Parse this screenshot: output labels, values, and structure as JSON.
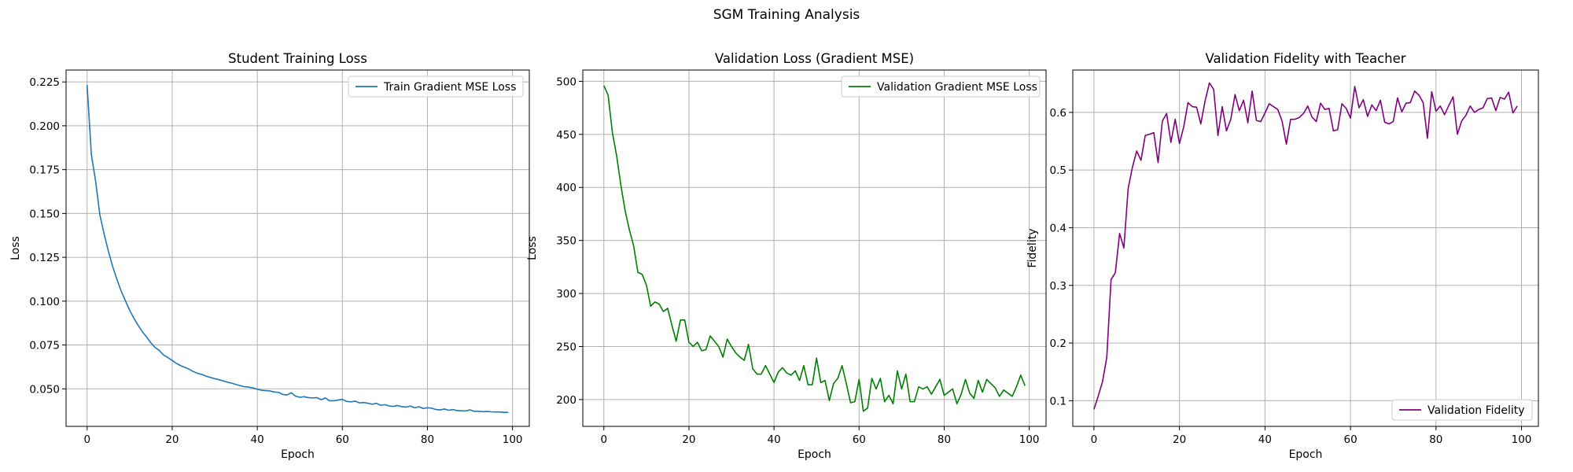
{
  "figure": {
    "suptitle": "SGM Training Analysis"
  },
  "chart_data": [
    {
      "type": "line",
      "title": "Student Training Loss",
      "xlabel": "Epoch",
      "ylabel": "Loss",
      "xlim": [
        -4.95,
        103.95
      ],
      "ylim": [
        0.0286,
        0.2318
      ],
      "xticks": [
        0,
        20,
        40,
        60,
        80,
        100
      ],
      "xtick_labels": [
        "0",
        "20",
        "40",
        "60",
        "80",
        "100"
      ],
      "yticks": [
        0.05,
        0.075,
        0.1,
        0.125,
        0.15,
        0.175,
        0.2,
        0.225
      ],
      "ytick_labels": [
        "0.050",
        "0.075",
        "0.100",
        "0.125",
        "0.150",
        "0.175",
        "0.200",
        "0.225"
      ],
      "grid": true,
      "legend": "top-right",
      "series": [
        {
          "name": "Train Gradient MSE Loss",
          "color": "#1f77b4",
          "x": [
            0,
            1,
            2,
            3,
            4,
            5,
            6,
            7,
            8,
            9,
            10,
            11,
            12,
            13,
            14,
            15,
            16,
            17,
            18,
            19,
            20,
            21,
            22,
            23,
            24,
            25,
            26,
            27,
            28,
            29,
            30,
            31,
            32,
            33,
            34,
            35,
            36,
            37,
            38,
            39,
            40,
            41,
            42,
            43,
            44,
            45,
            46,
            47,
            48,
            49,
            50,
            51,
            52,
            53,
            54,
            55,
            56,
            57,
            58,
            59,
            60,
            61,
            62,
            63,
            64,
            65,
            66,
            67,
            68,
            69,
            70,
            71,
            72,
            73,
            74,
            75,
            76,
            77,
            78,
            79,
            80,
            81,
            82,
            83,
            84,
            85,
            86,
            87,
            88,
            89,
            90,
            91,
            92,
            93,
            94,
            95,
            96,
            97,
            98,
            99
          ],
          "y": [
            0.2232,
            0.1835,
            0.1683,
            0.1492,
            0.1382,
            0.1285,
            0.1198,
            0.1125,
            0.1058,
            0.1002,
            0.0948,
            0.0902,
            0.0862,
            0.0825,
            0.0795,
            0.0762,
            0.0735,
            0.0718,
            0.0692,
            0.0678,
            0.0662,
            0.0645,
            0.0632,
            0.0622,
            0.0612,
            0.0598,
            0.0588,
            0.0582,
            0.0572,
            0.0565,
            0.0558,
            0.0552,
            0.0545,
            0.0538,
            0.0532,
            0.0525,
            0.0518,
            0.0512,
            0.051,
            0.0505,
            0.0498,
            0.0492,
            0.049,
            0.0488,
            0.0482,
            0.048,
            0.0468,
            0.0465,
            0.0478,
            0.0458,
            0.0452,
            0.0455,
            0.045,
            0.0448,
            0.045,
            0.0438,
            0.0448,
            0.0432,
            0.0432,
            0.0436,
            0.044,
            0.0428,
            0.0426,
            0.043,
            0.042,
            0.0422,
            0.0418,
            0.0412,
            0.0418,
            0.0406,
            0.041,
            0.0402,
            0.04,
            0.0405,
            0.0398,
            0.0396,
            0.0402,
            0.0392,
            0.0398,
            0.0388,
            0.0392,
            0.039,
            0.0382,
            0.038,
            0.0385,
            0.0378,
            0.0382,
            0.0376,
            0.0375,
            0.0374,
            0.038,
            0.0372,
            0.0372,
            0.037,
            0.0371,
            0.0369,
            0.0368,
            0.0368,
            0.0366,
            0.0366
          ]
        }
      ]
    },
    {
      "type": "line",
      "title": "Validation Loss (Gradient MSE)",
      "xlabel": "Epoch",
      "ylabel": "Loss",
      "xlim": [
        -4.95,
        103.95
      ],
      "ylim": [
        174.7,
        510.7
      ],
      "xticks": [
        0,
        20,
        40,
        60,
        80,
        100
      ],
      "xtick_labels": [
        "0",
        "20",
        "40",
        "60",
        "80",
        "100"
      ],
      "yticks": [
        200,
        250,
        300,
        350,
        400,
        450,
        500
      ],
      "ytick_labels": [
        "200",
        "250",
        "300",
        "350",
        "400",
        "450",
        "500"
      ],
      "grid": true,
      "legend": "top-right",
      "series": [
        {
          "name": "Validation Gradient MSE Loss",
          "color": "#008000",
          "x": [
            0,
            1,
            2,
            3,
            4,
            5,
            6,
            7,
            8,
            9,
            10,
            11,
            12,
            13,
            14,
            15,
            16,
            17,
            18,
            19,
            20,
            21,
            22,
            23,
            24,
            25,
            26,
            27,
            28,
            29,
            30,
            31,
            32,
            33,
            34,
            35,
            36,
            37,
            38,
            39,
            40,
            41,
            42,
            43,
            44,
            45,
            46,
            47,
            48,
            49,
            50,
            51,
            52,
            53,
            54,
            55,
            56,
            57,
            58,
            59,
            60,
            61,
            62,
            63,
            64,
            65,
            66,
            67,
            68,
            69,
            70,
            71,
            72,
            73,
            74,
            75,
            76,
            77,
            78,
            79,
            80,
            81,
            82,
            83,
            84,
            85,
            86,
            87,
            88,
            89,
            90,
            91,
            92,
            93,
            94,
            95,
            96,
            97,
            98,
            99
          ],
          "y": [
            496,
            487,
            452,
            430,
            402,
            378,
            360,
            345,
            320,
            318,
            308,
            288,
            292,
            290,
            283,
            286,
            270,
            255,
            275,
            275,
            254,
            250,
            254,
            246,
            247,
            260,
            255,
            250,
            240,
            257,
            250,
            244,
            240,
            237,
            252,
            229,
            224,
            224,
            232,
            224,
            216,
            226,
            230,
            225,
            223,
            227,
            218,
            232,
            214,
            214,
            239,
            216,
            218,
            199,
            215,
            220,
            232,
            215,
            197,
            198,
            219,
            189,
            192,
            220,
            210,
            220,
            198,
            204,
            196,
            227,
            210,
            224,
            198,
            198,
            212,
            210,
            212,
            205,
            212,
            219,
            204,
            207,
            210,
            196,
            205,
            219,
            206,
            201,
            218,
            207,
            219,
            215,
            211,
            203,
            209,
            206,
            203,
            212,
            223,
            213
          ]
        }
      ]
    },
    {
      "type": "line",
      "title": "Validation Fidelity with Teacher",
      "xlabel": "Epoch",
      "ylabel": "Fidelity",
      "xlim": [
        -4.95,
        103.95
      ],
      "ylim": [
        0.0555,
        0.6735
      ],
      "xticks": [
        0,
        20,
        40,
        60,
        80,
        100
      ],
      "xtick_labels": [
        "0",
        "20",
        "40",
        "60",
        "80",
        "100"
      ],
      "yticks": [
        0.1,
        0.2,
        0.3,
        0.4,
        0.5,
        0.6
      ],
      "ytick_labels": [
        "0.1",
        "0.2",
        "0.3",
        "0.4",
        "0.5",
        "0.6"
      ],
      "grid": true,
      "legend": "bottom-right",
      "series": [
        {
          "name": "Validation Fidelity",
          "color": "#800080",
          "x": [
            0,
            1,
            2,
            3,
            4,
            5,
            6,
            7,
            8,
            9,
            10,
            11,
            12,
            13,
            14,
            15,
            16,
            17,
            18,
            19,
            20,
            21,
            22,
            23,
            24,
            25,
            26,
            27,
            28,
            29,
            30,
            31,
            32,
            33,
            34,
            35,
            36,
            37,
            38,
            39,
            40,
            41,
            42,
            43,
            44,
            45,
            46,
            47,
            48,
            49,
            50,
            51,
            52,
            53,
            54,
            55,
            56,
            57,
            58,
            59,
            60,
            61,
            62,
            63,
            64,
            65,
            66,
            67,
            68,
            69,
            70,
            71,
            72,
            73,
            74,
            75,
            76,
            77,
            78,
            79,
            80,
            81,
            82,
            83,
            84,
            85,
            86,
            87,
            88,
            89,
            90,
            91,
            92,
            93,
            94,
            95,
            96,
            97,
            98,
            99
          ],
          "y": [
            0.085,
            0.108,
            0.133,
            0.175,
            0.31,
            0.322,
            0.39,
            0.365,
            0.468,
            0.505,
            0.533,
            0.517,
            0.56,
            0.562,
            0.565,
            0.513,
            0.585,
            0.598,
            0.548,
            0.588,
            0.546,
            0.575,
            0.617,
            0.61,
            0.609,
            0.58,
            0.62,
            0.651,
            0.64,
            0.56,
            0.61,
            0.568,
            0.588,
            0.631,
            0.603,
            0.621,
            0.582,
            0.637,
            0.586,
            0.584,
            0.599,
            0.615,
            0.61,
            0.605,
            0.585,
            0.545,
            0.588,
            0.588,
            0.591,
            0.598,
            0.611,
            0.592,
            0.584,
            0.616,
            0.605,
            0.607,
            0.568,
            0.57,
            0.615,
            0.607,
            0.59,
            0.645,
            0.608,
            0.622,
            0.593,
            0.613,
            0.603,
            0.621,
            0.583,
            0.58,
            0.584,
            0.625,
            0.601,
            0.616,
            0.617,
            0.637,
            0.63,
            0.617,
            0.555,
            0.636,
            0.602,
            0.611,
            0.596,
            0.612,
            0.627,
            0.562,
            0.585,
            0.595,
            0.611,
            0.6,
            0.605,
            0.608,
            0.624,
            0.625,
            0.603,
            0.626,
            0.623,
            0.635,
            0.599,
            0.611
          ]
        }
      ]
    }
  ]
}
